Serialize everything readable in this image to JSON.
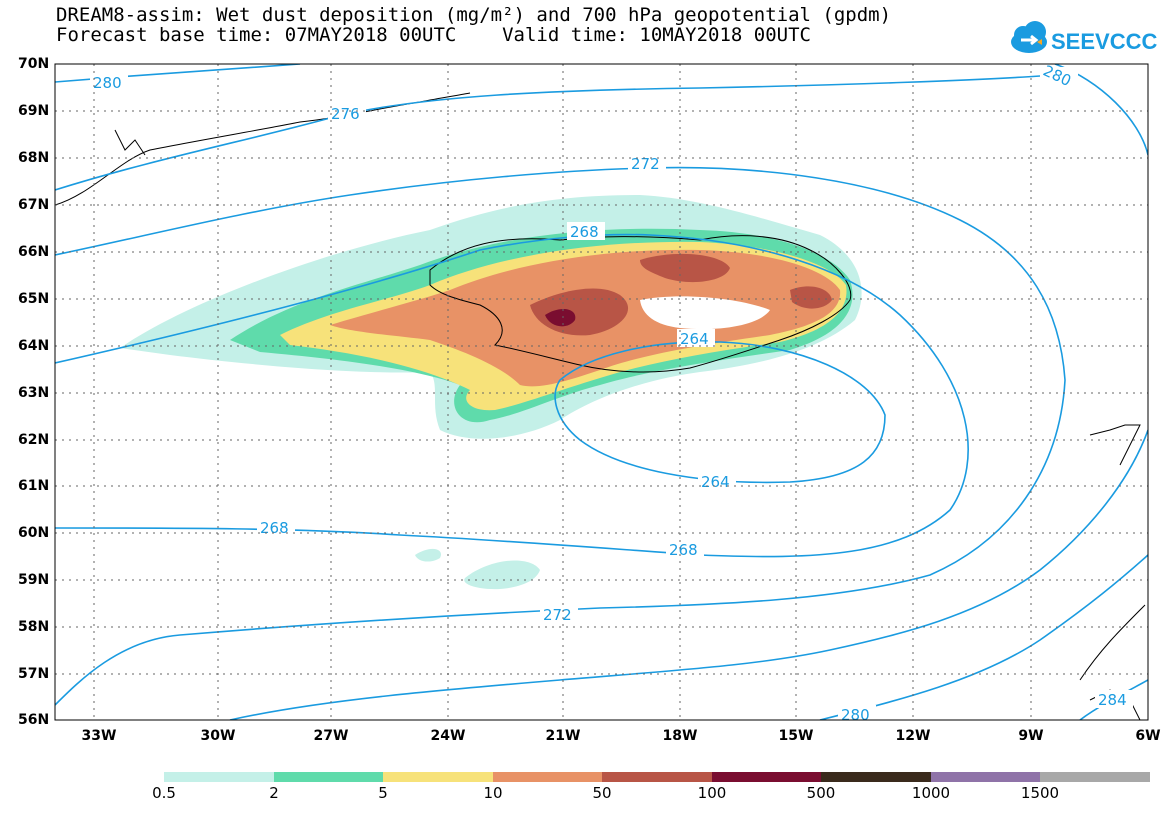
{
  "header": {
    "title_line1": "DREAM8-assim: Wet dust deposition (mg/m²) and 700 hPa geopotential (gpdm)",
    "title_line2": "Forecast base time: 07MAY2018 00UTC    Valid time: 10MAY2018 00UTC",
    "logo_text": "SEEVCCC"
  },
  "map": {
    "lat_labels": [
      "70N",
      "69N",
      "68N",
      "67N",
      "66N",
      "65N",
      "64N",
      "63N",
      "62N",
      "61N",
      "60N",
      "59N",
      "58N",
      "57N",
      "56N"
    ],
    "lon_labels": [
      "33W",
      "30W",
      "27W",
      "24W",
      "21W",
      "18W",
      "15W",
      "12W",
      "9W",
      "6W"
    ],
    "contour_labels": [
      "280",
      "276",
      "272",
      "268",
      "264",
      "264",
      "268",
      "268",
      "272",
      "280",
      "280",
      "284"
    ]
  },
  "legend": {
    "labels": [
      "0.5",
      "2",
      "5",
      "10",
      "50",
      "100",
      "500",
      "1000",
      "1500"
    ],
    "colors": [
      "#c4f0e8",
      "#5fdbab",
      "#f7e27a",
      "#e89266",
      "#b85546",
      "#7a0d30",
      "#3a2a1c",
      "#8f73a8",
      "#a8a8a8"
    ]
  },
  "colors": {
    "contour": "#1a9be0",
    "coast": "#000000"
  }
}
